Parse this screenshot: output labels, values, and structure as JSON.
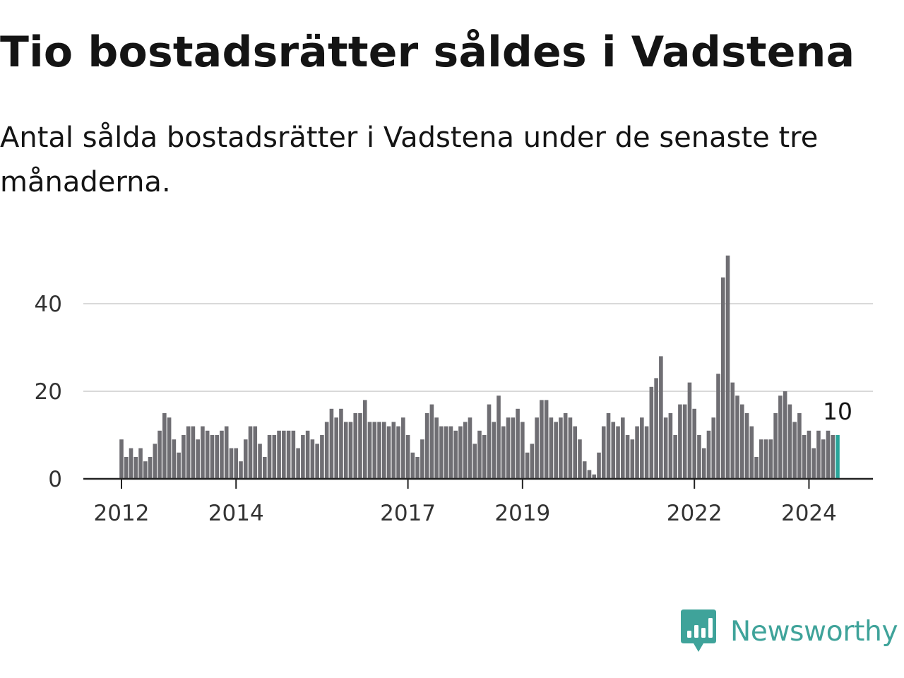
{
  "title": "Tio bostadsrätter såldes i Vadstena",
  "subtitle": "Antal sålda bostadsrätter i Vadstena under de senaste tre månaderna.",
  "brand": {
    "name": "Newsworthy",
    "color": "#3fa39a",
    "icon": "newsworthy-logo-icon"
  },
  "colors": {
    "bar": "#6f6e73",
    "highlight": "#2aa59a",
    "grid": "#d9d9d9",
    "axis": "#222222"
  },
  "chart_data": {
    "type": "bar",
    "title": "Tio bostadsrätter såldes i Vadstena",
    "xlabel": "",
    "ylabel": "",
    "ylim": [
      0,
      51
    ],
    "grid": true,
    "y_ticks": [
      0,
      20,
      40
    ],
    "x_ticks": [
      {
        "label": "2012",
        "index": 0
      },
      {
        "label": "2014",
        "index": 24
      },
      {
        "label": "2017",
        "index": 60
      },
      {
        "label": "2019",
        "index": 84
      },
      {
        "label": "2022",
        "index": 120
      },
      {
        "label": "2024",
        "index": 144
      }
    ],
    "x_span": 168,
    "last_value_label": "10",
    "values": [
      9,
      5,
      7,
      5,
      7,
      4,
      5,
      8,
      11,
      15,
      14,
      9,
      6,
      10,
      12,
      12,
      9,
      12,
      11,
      10,
      10,
      11,
      12,
      7,
      7,
      4,
      9,
      12,
      12,
      8,
      5,
      10,
      10,
      11,
      11,
      11,
      11,
      7,
      10,
      11,
      9,
      8,
      10,
      13,
      16,
      14,
      16,
      13,
      13,
      15,
      15,
      18,
      13,
      13,
      13,
      13,
      12,
      13,
      12,
      14,
      10,
      6,
      5,
      9,
      15,
      17,
      14,
      12,
      12,
      12,
      11,
      12,
      13,
      14,
      8,
      11,
      10,
      17,
      13,
      19,
      12,
      14,
      14,
      16,
      13,
      6,
      8,
      14,
      18,
      18,
      14,
      13,
      14,
      15,
      14,
      12,
      9,
      4,
      2,
      1,
      6,
      12,
      15,
      13,
      12,
      14,
      10,
      9,
      12,
      14,
      12,
      21,
      23,
      28,
      14,
      15,
      10,
      17,
      17,
      22,
      16,
      10,
      7,
      11,
      14,
      24,
      46,
      51,
      22,
      19,
      17,
      15,
      12,
      5,
      9,
      9,
      9,
      15,
      19,
      20,
      17,
      13,
      15,
      10,
      11,
      7,
      11,
      9,
      11,
      10,
      10
    ]
  }
}
